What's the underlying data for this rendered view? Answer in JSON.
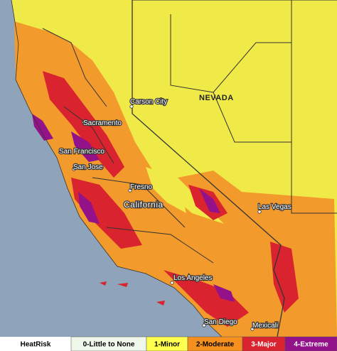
{
  "map": {
    "state_labels": [
      "NEVADA",
      "California"
    ],
    "cities": [
      "Carson City",
      "Sacramento",
      "San Francisco",
      "San Jose",
      "Fresno",
      "Las Vegas",
      "Los Angeles",
      "San Diego",
      "Mexicali"
    ]
  },
  "legend": {
    "title": "HeatRisk",
    "title_color": "#ffffff",
    "items": [
      {
        "label": "0-Little to None",
        "color": "#eef7ea",
        "text_color": "#000000"
      },
      {
        "label": "1-Minor",
        "color": "#ffff4d",
        "text_color": "#000000"
      },
      {
        "label": "2-Moderate",
        "color": "#f5901e",
        "text_color": "#000000"
      },
      {
        "label": "3-Major",
        "color": "#d9232e",
        "text_color": "#ffffff"
      },
      {
        "label": "4-Extreme",
        "color": "#93128a",
        "text_color": "#ffffff"
      }
    ]
  }
}
